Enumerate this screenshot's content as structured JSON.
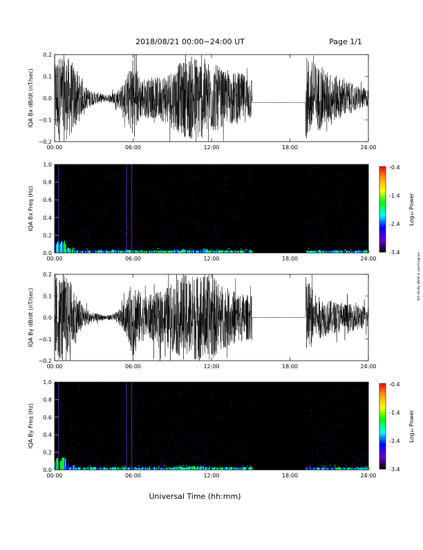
{
  "header": {
    "date_range": "2018/08/21  00:00−24:00 UT",
    "page": "Page 1/1"
  },
  "footer": {
    "x_axis_label": "Universal Time (hh:mm)"
  },
  "side_note": "IQA Bx/By dB/dt & spectrogram",
  "colorbar": {
    "ticks": [
      "-0.4",
      "-1.4",
      "-2.4",
      "-3.4"
    ],
    "label": "Log₁₀ Power",
    "colors": [
      "#ff0000",
      "#ffa500",
      "#ffff00",
      "#00ff00",
      "#00ffff",
      "#0000ff",
      "#6600cc",
      "#000000"
    ]
  },
  "x_ticks": [
    "00:00",
    "06:00",
    "12:00",
    "18:00",
    "24:00"
  ],
  "chart_data": [
    {
      "type": "line",
      "ylabel": "IQA Bx dB/dt (nT/sec)",
      "yticks": [
        "0.2",
        "0.1",
        "0.0",
        "−0.1",
        "−0.2"
      ],
      "ylim": [
        -0.2,
        0.2
      ],
      "xlim_hours": [
        0,
        24
      ],
      "gap_hours": [
        15.1,
        19.2
      ],
      "gap_value": -0.02,
      "envelope": {
        "x": [
          0,
          0.3,
          0.8,
          1.2,
          1.8,
          2.2,
          3,
          4,
          4.6,
          5.2,
          5.7,
          6.0,
          6.5,
          7,
          8,
          9,
          10,
          10.6,
          11,
          12,
          12.5,
          13,
          14,
          15.1
        ],
        "amplitude": [
          0.2,
          0.2,
          0.2,
          0.18,
          0.12,
          0.06,
          0.03,
          0.015,
          0.03,
          0.06,
          0.13,
          0.2,
          0.1,
          0.09,
          0.1,
          0.14,
          0.18,
          0.2,
          0.2,
          0.16,
          0.15,
          0.12,
          0.12,
          0.1
        ]
      },
      "envelope_after_gap": {
        "x": [
          19.2,
          20,
          21,
          22,
          23,
          24
        ],
        "amplitude": [
          0.2,
          0.16,
          0.12,
          0.09,
          0.06,
          0.04
        ]
      }
    },
    {
      "type": "heatmap",
      "ylabel": "IQA Bx Freq (Hz)",
      "yticks": [
        "1.0",
        "0.8",
        "0.6",
        "0.4",
        "0.2",
        "0.0"
      ],
      "ylim": [
        0,
        1.0
      ],
      "xlim_hours": [
        0,
        24
      ],
      "gap_hours": [
        15.1,
        19.2
      ],
      "bright_vertical_lines_hours": [
        0.3,
        5.5,
        5.9
      ]
    },
    {
      "type": "line",
      "ylabel": "IQA By dB/dt (nT/sec)",
      "yticks": [
        "0.2",
        "0.1",
        "0.0",
        "−0.1",
        "−0.2"
      ],
      "ylim": [
        -0.2,
        0.2
      ],
      "xlim_hours": [
        0,
        24
      ],
      "gap_hours": [
        15.1,
        19.2
      ],
      "gap_value": 0.0,
      "envelope": {
        "x": [
          0,
          0.3,
          0.8,
          1.2,
          1.8,
          2.2,
          3,
          4,
          4.6,
          5.2,
          5.7,
          6.0,
          6.5,
          7,
          8,
          9,
          10,
          10.6,
          11,
          12,
          12.5,
          13,
          14,
          15.1
        ],
        "amplitude": [
          0.2,
          0.2,
          0.2,
          0.17,
          0.1,
          0.05,
          0.02,
          0.01,
          0.02,
          0.05,
          0.12,
          0.2,
          0.12,
          0.1,
          0.12,
          0.16,
          0.2,
          0.2,
          0.2,
          0.2,
          0.17,
          0.14,
          0.12,
          0.1
        ]
      },
      "envelope_after_gap": {
        "x": [
          19.2,
          20,
          21,
          22,
          23,
          24
        ],
        "amplitude": [
          0.2,
          0.1,
          0.08,
          0.07,
          0.06,
          0.05
        ]
      }
    },
    {
      "type": "heatmap",
      "ylabel": "IQA By Freq (Hz)",
      "yticks": [
        "1.0",
        "0.8",
        "0.6",
        "0.4",
        "0.2",
        "0.0"
      ],
      "ylim": [
        0,
        1.0
      ],
      "xlim_hours": [
        0,
        24
      ],
      "gap_hours": [
        15.1,
        19.2
      ],
      "bright_vertical_lines_hours": [
        0.3,
        5.5,
        5.9
      ]
    }
  ]
}
